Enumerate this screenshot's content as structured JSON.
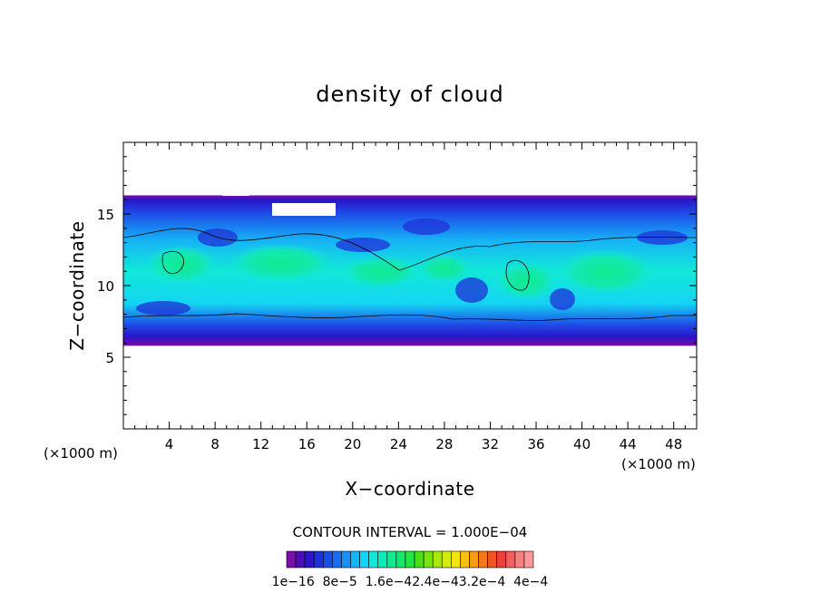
{
  "chart_data": {
    "type": "heatmap",
    "title": "density of cloud",
    "xlabel": "X−coordinate",
    "ylabel": "Z−coordinate",
    "x_unit_label": "(×1000 m)",
    "z_unit_label": "(×1000 m)",
    "xlim": [
      0,
      50
    ],
    "ylim": [
      0,
      20
    ],
    "x_ticks": [
      "4",
      "8",
      "12",
      "16",
      "20",
      "24",
      "28",
      "32",
      "36",
      "40",
      "44",
      "48"
    ],
    "y_ticks": [
      "5",
      "10",
      "15"
    ],
    "cloud_layer": {
      "base_km": 5.8,
      "top_km": 16.3
    },
    "contour_interval_text": "CONTOUR INTERVAL = 1.000E−04",
    "colorbar_labels": [
      "1e−16",
      "8e−5",
      "1.6e−4",
      "2.4e−4",
      "3.2e−4",
      "4e−4"
    ],
    "colorbar_label_text": "1e−16  8e−5  1.6e−42.4e−43.2e−4  4e−4",
    "colorbar_colors": [
      "#7a0dab",
      "#4a0fb8",
      "#2a16c8",
      "#2030d8",
      "#1e4ce8",
      "#1a6cf0",
      "#1890f4",
      "#16b4f6",
      "#14d4f2",
      "#12e8d8",
      "#10eab4",
      "#10ea90",
      "#14e86a",
      "#20e640",
      "#44e414",
      "#78e410",
      "#a8e810",
      "#d4ec10",
      "#f4e410",
      "#f8c010",
      "#f89c12",
      "#f47818",
      "#f05424",
      "#ec4040",
      "#f06060",
      "#f48080",
      "#f89a9a"
    ]
  }
}
